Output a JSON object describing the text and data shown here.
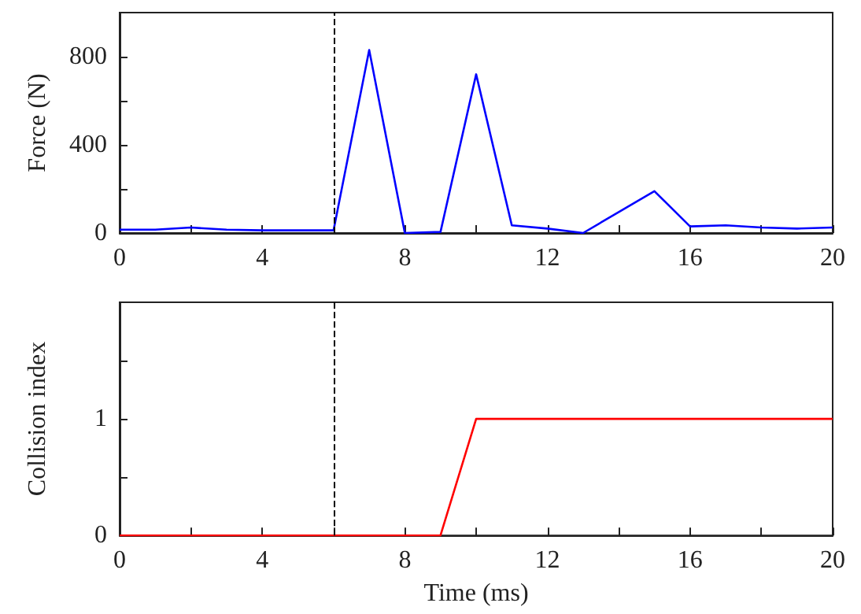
{
  "chart_data": [
    {
      "type": "line",
      "ylabel": "Force (N)",
      "x": [
        0,
        1,
        2,
        3,
        4,
        5,
        6,
        7,
        8,
        9,
        10,
        11,
        12,
        13,
        14,
        15,
        16,
        17,
        18,
        19,
        20
      ],
      "series": [
        {
          "color": "#0000ff",
          "values": [
            15,
            15,
            25,
            15,
            12,
            12,
            12,
            830,
            0,
            5,
            720,
            35,
            20,
            0,
            95,
            190,
            30,
            35,
            25,
            20,
            25
          ]
        }
      ],
      "xlim": [
        0,
        20
      ],
      "xticks": [
        0,
        {
          "value": 2,
          "label": null
        },
        4,
        {
          "value": 6,
          "label": null
        },
        8,
        {
          "value": 10,
          "label": null
        },
        12,
        {
          "value": 14,
          "label": null
        },
        16,
        {
          "value": 18,
          "label": null
        },
        20
      ],
      "ylim": [
        0,
        1000
      ],
      "yticks": [
        0,
        {
          "value": 200,
          "label": null
        },
        400,
        {
          "value": 600,
          "label": null
        },
        800
      ],
      "ref_lines": [
        {
          "axis": "x",
          "value": 6,
          "color": "#000000",
          "line_style": "dashed"
        }
      ],
      "grid": false,
      "marker": "none",
      "line_style": "solid"
    },
    {
      "type": "line",
      "xlabel": "Time (ms)",
      "ylabel": "Collision index",
      "x": [
        0,
        1,
        2,
        3,
        4,
        5,
        6,
        7,
        8,
        9,
        10,
        11,
        12,
        13,
        14,
        15,
        16,
        17,
        18,
        19,
        20
      ],
      "series": [
        {
          "color": "#ff0000",
          "values": [
            0,
            0,
            0,
            0,
            0,
            0,
            0,
            0,
            0,
            0,
            1,
            1,
            1,
            1,
            1,
            1,
            1,
            1,
            1,
            1,
            1
          ]
        }
      ],
      "xlim": [
        0,
        20
      ],
      "xticks": [
        0,
        {
          "value": 2,
          "label": null
        },
        4,
        {
          "value": 6,
          "label": null
        },
        8,
        {
          "value": 10,
          "label": null
        },
        12,
        {
          "value": 14,
          "label": null
        },
        16,
        {
          "value": 18,
          "label": null
        },
        20
      ],
      "ylim": [
        0,
        2
      ],
      "yticks": [
        0,
        {
          "value": 0.5,
          "label": null
        },
        1,
        {
          "value": 1.5,
          "label": null
        }
      ],
      "ref_lines": [
        {
          "axis": "x",
          "value": 6,
          "color": "#000000",
          "line_style": "dashed"
        }
      ],
      "grid": false,
      "marker": "none",
      "line_style": "solid"
    }
  ]
}
